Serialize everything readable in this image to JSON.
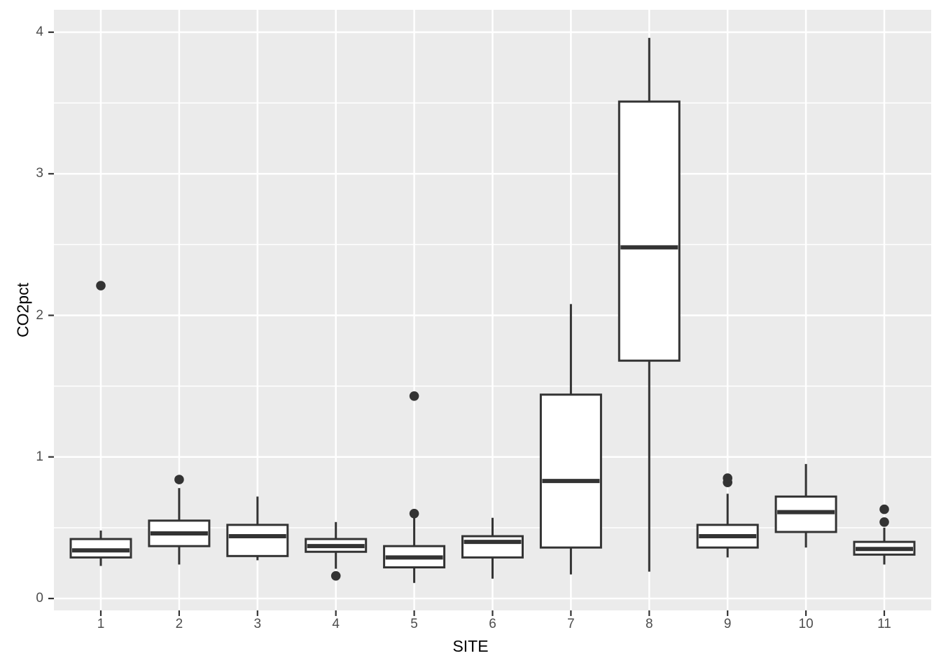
{
  "chart_data": {
    "type": "boxplot",
    "title": "",
    "xlabel": "SITE",
    "ylabel": "CO2pct",
    "categories": [
      "1",
      "2",
      "3",
      "4",
      "5",
      "6",
      "7",
      "8",
      "9",
      "10",
      "11"
    ],
    "y_axis": {
      "ticks": [
        0,
        1,
        2,
        3,
        4
      ],
      "tick_labels": [
        "0",
        "1",
        "2",
        "3",
        "4"
      ],
      "minor_gridlines": [
        0.5,
        1.5,
        2.5,
        3.5
      ],
      "range": [
        -0.08,
        4.16
      ]
    },
    "grid": "on",
    "legend": "none",
    "series": [
      {
        "site": "1",
        "whisker_low": 0.23,
        "q1": 0.29,
        "median": 0.34,
        "q3": 0.42,
        "whisker_high": 0.48,
        "outliers": [
          2.21
        ]
      },
      {
        "site": "2",
        "whisker_low": 0.24,
        "q1": 0.37,
        "median": 0.46,
        "q3": 0.55,
        "whisker_high": 0.78,
        "outliers": [
          0.84
        ]
      },
      {
        "site": "3",
        "whisker_low": 0.27,
        "q1": 0.3,
        "median": 0.44,
        "q3": 0.52,
        "whisker_high": 0.72,
        "outliers": []
      },
      {
        "site": "4",
        "whisker_low": 0.21,
        "q1": 0.33,
        "median": 0.37,
        "q3": 0.42,
        "whisker_high": 0.54,
        "outliers": [
          0.16
        ]
      },
      {
        "site": "5",
        "whisker_low": 0.11,
        "q1": 0.22,
        "median": 0.29,
        "q3": 0.37,
        "whisker_high": 0.57,
        "outliers": [
          0.6,
          1.43
        ]
      },
      {
        "site": "6",
        "whisker_low": 0.14,
        "q1": 0.29,
        "median": 0.4,
        "q3": 0.44,
        "whisker_high": 0.57,
        "outliers": []
      },
      {
        "site": "7",
        "whisker_low": 0.17,
        "q1": 0.36,
        "median": 0.83,
        "q3": 1.44,
        "whisker_high": 2.08,
        "outliers": []
      },
      {
        "site": "8",
        "whisker_low": 0.19,
        "q1": 1.68,
        "median": 2.48,
        "q3": 3.51,
        "whisker_high": 3.96,
        "outliers": []
      },
      {
        "site": "9",
        "whisker_low": 0.29,
        "q1": 0.36,
        "median": 0.44,
        "q3": 0.52,
        "whisker_high": 0.74,
        "outliers": [
          0.82,
          0.85
        ]
      },
      {
        "site": "10",
        "whisker_low": 0.36,
        "q1": 0.47,
        "median": 0.61,
        "q3": 0.72,
        "whisker_high": 0.95,
        "outliers": []
      },
      {
        "site": "11",
        "whisker_low": 0.24,
        "q1": 0.31,
        "median": 0.35,
        "q3": 0.4,
        "whisker_high": 0.5,
        "outliers": [
          0.54,
          0.63
        ]
      }
    ],
    "style": {
      "panel_bg": "#EBEBEB",
      "grid_color": "#FFFFFF",
      "box_fill": "#FFFFFF",
      "box_stroke": "#333333",
      "outlier_color": "#333333",
      "tick_mark_color": "#333333",
      "tick_label_color": "#4D4D4D",
      "axis_title_color": "#000000"
    }
  }
}
